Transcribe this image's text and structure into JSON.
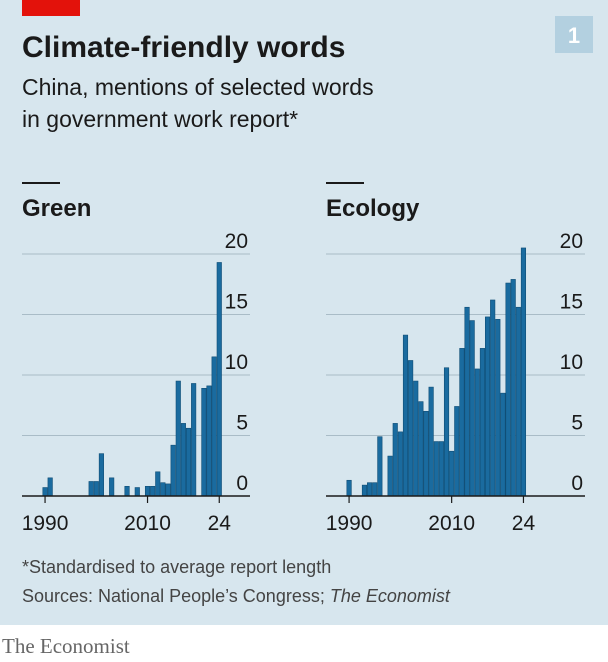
{
  "title": "Climate-friendly words",
  "subtitle": [
    "China, mentions of selected words",
    "in government work report*"
  ],
  "badge": "1",
  "footnote": "*Standardised to average report length",
  "source": "Sources: National People’s Congress; ",
  "source_italic": "The Economist",
  "brand": "The Economist",
  "chart_data": [
    {
      "type": "bar",
      "title": "Green",
      "color": "#1a6b9f",
      "x": [
        1990,
        1991,
        1992,
        1993,
        1994,
        1995,
        1996,
        1997,
        1998,
        1999,
        2000,
        2001,
        2002,
        2003,
        2004,
        2005,
        2006,
        2007,
        2008,
        2009,
        2010,
        2011,
        2012,
        2013,
        2014,
        2015,
        2016,
        2017,
        2018,
        2019,
        2020,
        2021,
        2022,
        2023,
        2024
      ],
      "values": [
        0.7,
        1.5,
        0,
        0,
        0,
        0,
        0,
        0,
        0,
        1.2,
        1.2,
        3.5,
        0,
        1.5,
        0,
        0,
        0.8,
        0,
        0.7,
        0,
        0.8,
        0.8,
        2.0,
        1.1,
        1.0,
        4.2,
        9.5,
        6.0,
        5.6,
        9.3,
        0,
        8.9,
        9.1,
        11.5,
        19.3
      ],
      "xlim": [
        1985.5,
        2030
      ],
      "xticks": [
        1990,
        2010,
        {
          "value": 2024,
          "label": "24"
        }
      ],
      "ylim": [
        0,
        20
      ],
      "yticks": [
        0,
        5,
        10,
        15,
        20
      ],
      "grid": true
    },
    {
      "type": "bar",
      "title": "Ecology",
      "color": "#1a6b9f",
      "x": [
        1990,
        1991,
        1992,
        1993,
        1994,
        1995,
        1996,
        1997,
        1998,
        1999,
        2000,
        2001,
        2002,
        2003,
        2004,
        2005,
        2006,
        2007,
        2008,
        2009,
        2010,
        2011,
        2012,
        2013,
        2014,
        2015,
        2016,
        2017,
        2018,
        2019,
        2020,
        2021,
        2022,
        2023,
        2024
      ],
      "values": [
        1.3,
        0,
        0,
        0.9,
        1.1,
        1.1,
        4.9,
        0,
        3.3,
        6.0,
        5.3,
        13.3,
        11.2,
        9.5,
        7.8,
        7.0,
        9.0,
        4.5,
        4.5,
        10.6,
        3.7,
        7.4,
        12.2,
        15.6,
        14.5,
        10.5,
        12.2,
        14.8,
        16.2,
        14.6,
        8.5,
        17.6,
        17.9,
        15.6,
        20.5
      ],
      "xlim": [
        1985.5,
        2036
      ],
      "xticks": [
        1990,
        2010,
        {
          "value": 2024,
          "label": "24"
        }
      ],
      "ylim": [
        0,
        20
      ],
      "yticks": [
        0,
        5,
        10,
        15,
        20
      ],
      "grid": true
    }
  ]
}
